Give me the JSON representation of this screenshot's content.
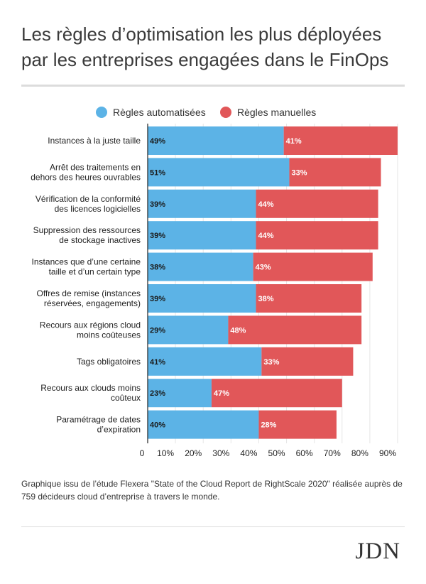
{
  "title_lines": [
    "Les règles d’optimisation les plus déployées",
    "par les entreprises engagées dans le FinOps"
  ],
  "legend": [
    {
      "label": "Règles automatisées",
      "color": "#5cb3e6"
    },
    {
      "label": "Règles manuelles",
      "color": "#e15759"
    }
  ],
  "chart_data": {
    "type": "bar",
    "orientation": "horizontal",
    "stacked": true,
    "categories": [
      [
        "Instances à la juste taille"
      ],
      [
        "Arrêt des traitements en",
        "dehors des heures ouvrables"
      ],
      [
        "Vérification de la conformité",
        "des licences logicielles"
      ],
      [
        "Suppression des ressources",
        "de stockage inactives"
      ],
      [
        "Instances que d’une certaine",
        "taille et d’un certain type"
      ],
      [
        "Offres de remise (instances",
        "réservées, engagements)"
      ],
      [
        "Recours aux régions cloud",
        "moins coûteuses"
      ],
      [
        "Tags obligatoires"
      ],
      [
        "Recours aux clouds moins",
        "coûteux"
      ],
      [
        "Paramétrage de dates",
        "d’expiration"
      ]
    ],
    "series": [
      {
        "name": "Règles automatisées",
        "color": "#5cb3e6",
        "values": [
          49,
          51,
          39,
          39,
          38,
          39,
          29,
          41,
          23,
          40
        ]
      },
      {
        "name": "Règles manuelles",
        "color": "#e15759",
        "values": [
          41,
          33,
          44,
          44,
          43,
          38,
          48,
          33,
          47,
          28
        ]
      }
    ],
    "value_suffix": "%",
    "xlim": [
      0,
      90
    ],
    "xticks": [
      0,
      10,
      20,
      30,
      40,
      50,
      60,
      70,
      80,
      90
    ],
    "xtick_labels": [
      "0",
      "10%",
      "20%",
      "30%",
      "40%",
      "50%",
      "60%",
      "70%",
      "80%",
      "90%"
    ],
    "grid": true,
    "legend_position": "top"
  },
  "footnote": "Graphique issu de l’étude Flexera \"State of the Cloud Report de RightScale 2020\" réalisée auprès de 759 décideurs cloud d’entreprise à travers le monde.",
  "logo": "JDN"
}
